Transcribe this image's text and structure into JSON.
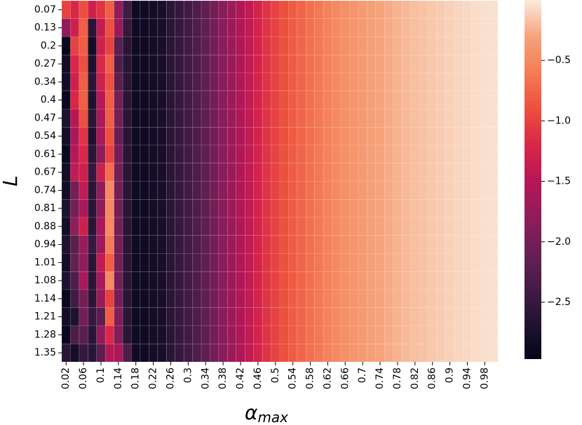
{
  "chart_data": {
    "type": "heatmap",
    "x_label": "α",
    "x_label_sub": "max",
    "y_label": "L",
    "x_categories": [
      "0.02",
      null,
      "0.06",
      null,
      "0.1",
      null,
      "0.14",
      null,
      "0.18",
      null,
      "0.22",
      null,
      "0.26",
      null,
      "0.3",
      null,
      "0.34",
      null,
      "0.38",
      null,
      "0.42",
      null,
      "0.46",
      null,
      "0.5",
      null,
      "0.54",
      null,
      "0.58",
      null,
      "0.62",
      null,
      "0.66",
      null,
      "0.7",
      null,
      "0.74",
      null,
      "0.78",
      null,
      "0.82",
      null,
      "0.86",
      null,
      "0.9",
      null,
      "0.94",
      null,
      "0.98",
      null
    ],
    "y_categories": [
      "0.07",
      "0.13",
      "0.2",
      "0.27",
      "0.34",
      "0.4",
      "0.47",
      "0.54",
      "0.61",
      "0.67",
      "0.74",
      "0.81",
      "0.88",
      "0.94",
      "1.01",
      "1.08",
      "1.14",
      "1.21",
      "1.28",
      "1.35"
    ],
    "z": [
      [
        -1.0,
        -1.2,
        -0.9,
        -1.3,
        -1.1,
        -0.8,
        -1.8,
        -2.4,
        -2.85,
        -2.85,
        -2.8,
        -2.75,
        -2.6,
        -2.5,
        -2.4,
        -2.3,
        -2.15,
        -2.0,
        -1.85,
        -1.7,
        -1.55,
        -1.4,
        -1.25,
        -1.1,
        -1.0,
        -0.9,
        -0.82,
        -0.75,
        -0.68,
        -0.62,
        -0.56,
        -0.5,
        -0.45,
        -0.41,
        -0.37,
        -0.33,
        -0.3,
        -0.27,
        -0.24,
        -0.21,
        -0.19,
        -0.17,
        -0.15,
        -0.13,
        -0.11,
        -0.09,
        -0.08,
        -0.06,
        -0.05,
        -0.04
      ],
      [
        -1.8,
        -1.3,
        -0.8,
        -2.6,
        -1.4,
        -0.9,
        -1.7,
        -2.5,
        -2.85,
        -2.85,
        -2.8,
        -2.75,
        -2.6,
        -2.5,
        -2.4,
        -2.3,
        -2.15,
        -2.0,
        -1.85,
        -1.7,
        -1.55,
        -1.4,
        -1.25,
        -1.1,
        -1.0,
        -0.9,
        -0.82,
        -0.75,
        -0.68,
        -0.62,
        -0.56,
        -0.5,
        -0.45,
        -0.41,
        -0.37,
        -0.33,
        -0.3,
        -0.27,
        -0.24,
        -0.21,
        -0.19,
        -0.17,
        -0.15,
        -0.13,
        -0.11,
        -0.09,
        -0.08,
        -0.06,
        -0.05,
        -0.04
      ],
      [
        -2.9,
        -1.0,
        -0.8,
        -2.8,
        -1.3,
        -1.0,
        -2.2,
        -2.6,
        -2.85,
        -2.85,
        -2.8,
        -2.75,
        -2.6,
        -2.5,
        -2.4,
        -2.3,
        -2.15,
        -2.0,
        -1.85,
        -1.7,
        -1.55,
        -1.4,
        -1.25,
        -1.1,
        -1.0,
        -0.9,
        -0.82,
        -0.75,
        -0.68,
        -0.62,
        -0.56,
        -0.5,
        -0.45,
        -0.41,
        -0.37,
        -0.33,
        -0.3,
        -0.27,
        -0.24,
        -0.21,
        -0.19,
        -0.17,
        -0.15,
        -0.13,
        -0.11,
        -0.09,
        -0.08,
        -0.06,
        -0.05,
        -0.04
      ],
      [
        -2.8,
        -1.2,
        -0.9,
        -2.7,
        -1.2,
        -0.8,
        -2.3,
        -2.6,
        -2.85,
        -2.85,
        -2.8,
        -2.75,
        -2.6,
        -2.5,
        -2.4,
        -2.3,
        -2.15,
        -2.0,
        -1.85,
        -1.7,
        -1.55,
        -1.4,
        -1.25,
        -1.1,
        -1.0,
        -0.9,
        -0.82,
        -0.75,
        -0.68,
        -0.62,
        -0.56,
        -0.5,
        -0.45,
        -0.41,
        -0.37,
        -0.33,
        -0.3,
        -0.27,
        -0.24,
        -0.21,
        -0.19,
        -0.17,
        -0.15,
        -0.13,
        -0.11,
        -0.09,
        -0.08,
        -0.06,
        -0.05,
        -0.04
      ],
      [
        -2.8,
        -1.3,
        -0.8,
        -2.6,
        -1.3,
        -0.9,
        -2.2,
        -2.6,
        -2.85,
        -2.85,
        -2.8,
        -2.75,
        -2.6,
        -2.5,
        -2.4,
        -2.3,
        -2.15,
        -2.0,
        -1.85,
        -1.7,
        -1.55,
        -1.4,
        -1.25,
        -1.1,
        -1.0,
        -0.9,
        -0.82,
        -0.75,
        -0.68,
        -0.62,
        -0.56,
        -0.5,
        -0.45,
        -0.41,
        -0.37,
        -0.33,
        -0.3,
        -0.27,
        -0.24,
        -0.21,
        -0.19,
        -0.17,
        -0.15,
        -0.13,
        -0.11,
        -0.09,
        -0.08,
        -0.06,
        -0.05,
        -0.04
      ],
      [
        -2.9,
        -1.2,
        -0.8,
        -2.7,
        -1.5,
        -0.8,
        -2.0,
        -2.6,
        -2.85,
        -2.85,
        -2.8,
        -2.75,
        -2.6,
        -2.5,
        -2.4,
        -2.3,
        -2.15,
        -2.0,
        -1.85,
        -1.7,
        -1.55,
        -1.4,
        -1.25,
        -1.1,
        -1.0,
        -0.9,
        -0.82,
        -0.75,
        -0.68,
        -0.62,
        -0.56,
        -0.5,
        -0.45,
        -0.41,
        -0.37,
        -0.33,
        -0.3,
        -0.27,
        -0.24,
        -0.21,
        -0.19,
        -0.17,
        -0.15,
        -0.13,
        -0.11,
        -0.09,
        -0.08,
        -0.06,
        -0.05,
        -0.04
      ],
      [
        -2.7,
        -1.5,
        -0.9,
        -2.6,
        -1.6,
        -0.8,
        -2.0,
        -2.6,
        -2.85,
        -2.85,
        -2.8,
        -2.75,
        -2.6,
        -2.5,
        -2.4,
        -2.3,
        -2.15,
        -2.0,
        -1.85,
        -1.7,
        -1.55,
        -1.4,
        -1.25,
        -1.1,
        -1.0,
        -0.9,
        -0.82,
        -0.75,
        -0.68,
        -0.62,
        -0.56,
        -0.5,
        -0.45,
        -0.41,
        -0.37,
        -0.33,
        -0.3,
        -0.27,
        -0.24,
        -0.21,
        -0.19,
        -0.17,
        -0.15,
        -0.13,
        -0.11,
        -0.09,
        -0.08,
        -0.06,
        -0.05,
        -0.04
      ],
      [
        -2.8,
        -1.6,
        -1.1,
        -2.7,
        -1.6,
        -0.9,
        -2.1,
        -2.6,
        -2.85,
        -2.85,
        -2.8,
        -2.75,
        -2.6,
        -2.5,
        -2.4,
        -2.3,
        -2.15,
        -2.0,
        -1.85,
        -1.7,
        -1.55,
        -1.4,
        -1.25,
        -1.1,
        -1.0,
        -0.9,
        -0.82,
        -0.75,
        -0.68,
        -0.62,
        -0.56,
        -0.5,
        -0.45,
        -0.41,
        -0.37,
        -0.33,
        -0.3,
        -0.27,
        -0.24,
        -0.21,
        -0.19,
        -0.17,
        -0.15,
        -0.13,
        -0.11,
        -0.09,
        -0.08,
        -0.06,
        -0.05,
        -0.04
      ],
      [
        -2.9,
        -1.5,
        -1.2,
        -2.6,
        -1.8,
        -1.0,
        -2.0,
        -2.6,
        -2.85,
        -2.85,
        -2.8,
        -2.75,
        -2.6,
        -2.5,
        -2.4,
        -2.3,
        -2.15,
        -2.0,
        -1.85,
        -1.7,
        -1.55,
        -1.4,
        -1.25,
        -1.1,
        -1.0,
        -0.9,
        -0.82,
        -0.75,
        -0.68,
        -0.62,
        -0.56,
        -0.5,
        -0.45,
        -0.41,
        -0.37,
        -0.33,
        -0.3,
        -0.27,
        -0.24,
        -0.21,
        -0.19,
        -0.17,
        -0.15,
        -0.13,
        -0.11,
        -0.09,
        -0.08,
        -0.06,
        -0.05,
        -0.04
      ],
      [
        -2.8,
        -1.4,
        -1.3,
        -2.5,
        -1.3,
        -0.7,
        -2.0,
        -2.6,
        -2.85,
        -2.85,
        -2.8,
        -2.75,
        -2.6,
        -2.5,
        -2.4,
        -2.3,
        -2.15,
        -2.0,
        -1.85,
        -1.7,
        -1.55,
        -1.4,
        -1.25,
        -1.1,
        -1.0,
        -0.9,
        -0.82,
        -0.75,
        -0.68,
        -0.62,
        -0.56,
        -0.5,
        -0.45,
        -0.41,
        -0.37,
        -0.33,
        -0.3,
        -0.27,
        -0.24,
        -0.21,
        -0.19,
        -0.17,
        -0.15,
        -0.13,
        -0.11,
        -0.09,
        -0.08,
        -0.06,
        -0.05,
        -0.04
      ],
      [
        -2.8,
        -2.0,
        -1.4,
        -2.6,
        -1.8,
        -0.5,
        -2.0,
        -2.6,
        -2.85,
        -2.85,
        -2.8,
        -2.75,
        -2.6,
        -2.5,
        -2.4,
        -2.3,
        -2.15,
        -2.0,
        -1.85,
        -1.7,
        -1.55,
        -1.4,
        -1.25,
        -1.1,
        -1.0,
        -0.9,
        -0.82,
        -0.75,
        -0.68,
        -0.62,
        -0.56,
        -0.5,
        -0.45,
        -0.41,
        -0.37,
        -0.33,
        -0.3,
        -0.27,
        -0.24,
        -0.21,
        -0.19,
        -0.17,
        -0.15,
        -0.13,
        -0.11,
        -0.09,
        -0.08,
        -0.06,
        -0.05,
        -0.04
      ],
      [
        -2.7,
        -2.0,
        -1.6,
        -2.6,
        -1.8,
        -0.5,
        -2.0,
        -2.6,
        -2.85,
        -2.85,
        -2.8,
        -2.75,
        -2.6,
        -2.5,
        -2.4,
        -2.3,
        -2.15,
        -2.0,
        -1.85,
        -1.7,
        -1.55,
        -1.4,
        -1.25,
        -1.1,
        -1.0,
        -0.9,
        -0.82,
        -0.75,
        -0.68,
        -0.62,
        -0.56,
        -0.5,
        -0.45,
        -0.41,
        -0.37,
        -0.33,
        -0.3,
        -0.27,
        -0.24,
        -0.21,
        -0.19,
        -0.17,
        -0.15,
        -0.13,
        -0.11,
        -0.09,
        -0.08,
        -0.06,
        -0.05,
        -0.04
      ],
      [
        -2.8,
        -1.8,
        -1.3,
        -2.6,
        -1.6,
        -0.5,
        -2.0,
        -2.6,
        -2.85,
        -2.85,
        -2.8,
        -2.75,
        -2.6,
        -2.5,
        -2.4,
        -2.3,
        -2.15,
        -2.0,
        -1.85,
        -1.7,
        -1.55,
        -1.4,
        -1.25,
        -1.1,
        -1.0,
        -0.9,
        -0.82,
        -0.75,
        -0.68,
        -0.62,
        -0.56,
        -0.5,
        -0.45,
        -0.41,
        -0.37,
        -0.33,
        -0.3,
        -0.27,
        -0.24,
        -0.21,
        -0.19,
        -0.17,
        -0.15,
        -0.13,
        -0.11,
        -0.09,
        -0.08,
        -0.06,
        -0.05,
        -0.04
      ],
      [
        -2.7,
        -2.2,
        -1.7,
        -2.5,
        -1.7,
        -0.6,
        -2.0,
        -2.6,
        -2.85,
        -2.85,
        -2.8,
        -2.75,
        -2.6,
        -2.5,
        -2.4,
        -2.3,
        -2.15,
        -2.0,
        -1.85,
        -1.7,
        -1.55,
        -1.4,
        -1.25,
        -1.1,
        -1.0,
        -0.9,
        -0.82,
        -0.75,
        -0.68,
        -0.62,
        -0.56,
        -0.5,
        -0.45,
        -0.41,
        -0.37,
        -0.33,
        -0.3,
        -0.27,
        -0.24,
        -0.21,
        -0.19,
        -0.17,
        -0.15,
        -0.13,
        -0.11,
        -0.09,
        -0.08,
        -0.06,
        -0.05,
        -0.04
      ],
      [
        -2.8,
        -2.1,
        -1.8,
        -2.6,
        -1.4,
        -0.8,
        -2.0,
        -2.6,
        -2.85,
        -2.85,
        -2.8,
        -2.75,
        -2.6,
        -2.5,
        -2.4,
        -2.3,
        -2.15,
        -2.0,
        -1.85,
        -1.7,
        -1.55,
        -1.4,
        -1.25,
        -1.1,
        -1.0,
        -0.9,
        -0.82,
        -0.75,
        -0.68,
        -0.62,
        -0.56,
        -0.5,
        -0.45,
        -0.41,
        -0.37,
        -0.33,
        -0.3,
        -0.27,
        -0.24,
        -0.21,
        -0.19,
        -0.17,
        -0.15,
        -0.13,
        -0.11,
        -0.09,
        -0.08,
        -0.06,
        -0.05,
        -0.04
      ],
      [
        -2.7,
        -2.3,
        -1.6,
        -2.6,
        -1.6,
        -0.5,
        -2.0,
        -2.6,
        -2.85,
        -2.85,
        -2.8,
        -2.75,
        -2.6,
        -2.5,
        -2.4,
        -2.3,
        -2.15,
        -2.0,
        -1.85,
        -1.7,
        -1.55,
        -1.4,
        -1.25,
        -1.1,
        -1.0,
        -0.9,
        -0.82,
        -0.75,
        -0.68,
        -0.62,
        -0.56,
        -0.5,
        -0.45,
        -0.41,
        -0.37,
        -0.33,
        -0.3,
        -0.27,
        -0.24,
        -0.21,
        -0.19,
        -0.17,
        -0.15,
        -0.13,
        -0.11,
        -0.09,
        -0.08,
        -0.06,
        -0.05,
        -0.04
      ],
      [
        -2.9,
        -2.4,
        -2.0,
        -2.6,
        -1.7,
        -1.0,
        -2.0,
        -2.6,
        -2.85,
        -2.85,
        -2.8,
        -2.75,
        -2.6,
        -2.5,
        -2.4,
        -2.3,
        -2.15,
        -2.0,
        -1.85,
        -1.7,
        -1.55,
        -1.4,
        -1.25,
        -1.1,
        -1.0,
        -0.9,
        -0.82,
        -0.75,
        -0.68,
        -0.62,
        -0.56,
        -0.5,
        -0.45,
        -0.41,
        -0.37,
        -0.33,
        -0.3,
        -0.27,
        -0.24,
        -0.21,
        -0.19,
        -0.17,
        -0.15,
        -0.13,
        -0.11,
        -0.09,
        -0.08,
        -0.06,
        -0.05,
        -0.04
      ],
      [
        -2.8,
        -2.7,
        -2.0,
        -2.5,
        -2.2,
        -0.8,
        -1.9,
        -2.6,
        -2.85,
        -2.85,
        -2.8,
        -2.75,
        -2.6,
        -2.5,
        -2.4,
        -2.3,
        -2.15,
        -2.0,
        -1.85,
        -1.7,
        -1.55,
        -1.4,
        -1.25,
        -1.1,
        -1.0,
        -0.9,
        -0.82,
        -0.75,
        -0.68,
        -0.62,
        -0.56,
        -0.5,
        -0.45,
        -0.41,
        -0.37,
        -0.33,
        -0.3,
        -0.27,
        -0.24,
        -0.21,
        -0.19,
        -0.17,
        -0.15,
        -0.13,
        -0.11,
        -0.09,
        -0.08,
        -0.06,
        -0.05,
        -0.04
      ],
      [
        -2.9,
        -2.3,
        -2.2,
        -2.6,
        -1.8,
        -1.2,
        -1.9,
        -2.6,
        -2.85,
        -2.85,
        -2.8,
        -2.75,
        -2.6,
        -2.5,
        -2.4,
        -2.3,
        -2.15,
        -2.0,
        -1.85,
        -1.7,
        -1.55,
        -1.4,
        -1.25,
        -1.1,
        -1.0,
        -0.9,
        -0.82,
        -0.75,
        -0.68,
        -0.62,
        -0.56,
        -0.5,
        -0.45,
        -0.41,
        -0.37,
        -0.33,
        -0.3,
        -0.27,
        -0.24,
        -0.21,
        -0.19,
        -0.17,
        -0.15,
        -0.13,
        -0.11,
        -0.09,
        -0.08,
        -0.06,
        -0.05,
        -0.04
      ],
      [
        -2.6,
        -2.8,
        -2.5,
        -2.6,
        -2.2,
        -1.5,
        -1.6,
        -2.3,
        -2.85,
        -2.85,
        -2.8,
        -2.75,
        -2.6,
        -2.5,
        -2.4,
        -2.3,
        -2.15,
        -2.0,
        -1.85,
        -1.7,
        -1.55,
        -1.4,
        -1.25,
        -1.1,
        -1.0,
        -0.9,
        -0.82,
        -0.75,
        -0.68,
        -0.62,
        -0.56,
        -0.5,
        -0.45,
        -0.41,
        -0.37,
        -0.33,
        -0.3,
        -0.27,
        -0.24,
        -0.21,
        -0.19,
        -0.17,
        -0.15,
        -0.13,
        -0.11,
        -0.09,
        -0.08,
        -0.06,
        -0.05,
        -0.04
      ]
    ],
    "colorbar_lim": [
      -2.97,
      0
    ],
    "colorbar_ticks": [
      {
        "value": -0.5,
        "label": "−0.5"
      },
      {
        "value": -1.0,
        "label": "−1.0"
      },
      {
        "value": -1.5,
        "label": "−1.5"
      },
      {
        "value": -2.0,
        "label": "−2.0"
      },
      {
        "value": -2.5,
        "label": "−2.5"
      }
    ],
    "colormap": [
      "#03051a",
      "#221331",
      "#451c47",
      "#691f55",
      "#921c5b",
      "#b91657",
      "#d92847",
      "#ed513e",
      "#f47c56",
      "#f6a47c",
      "#faebdd"
    ]
  }
}
